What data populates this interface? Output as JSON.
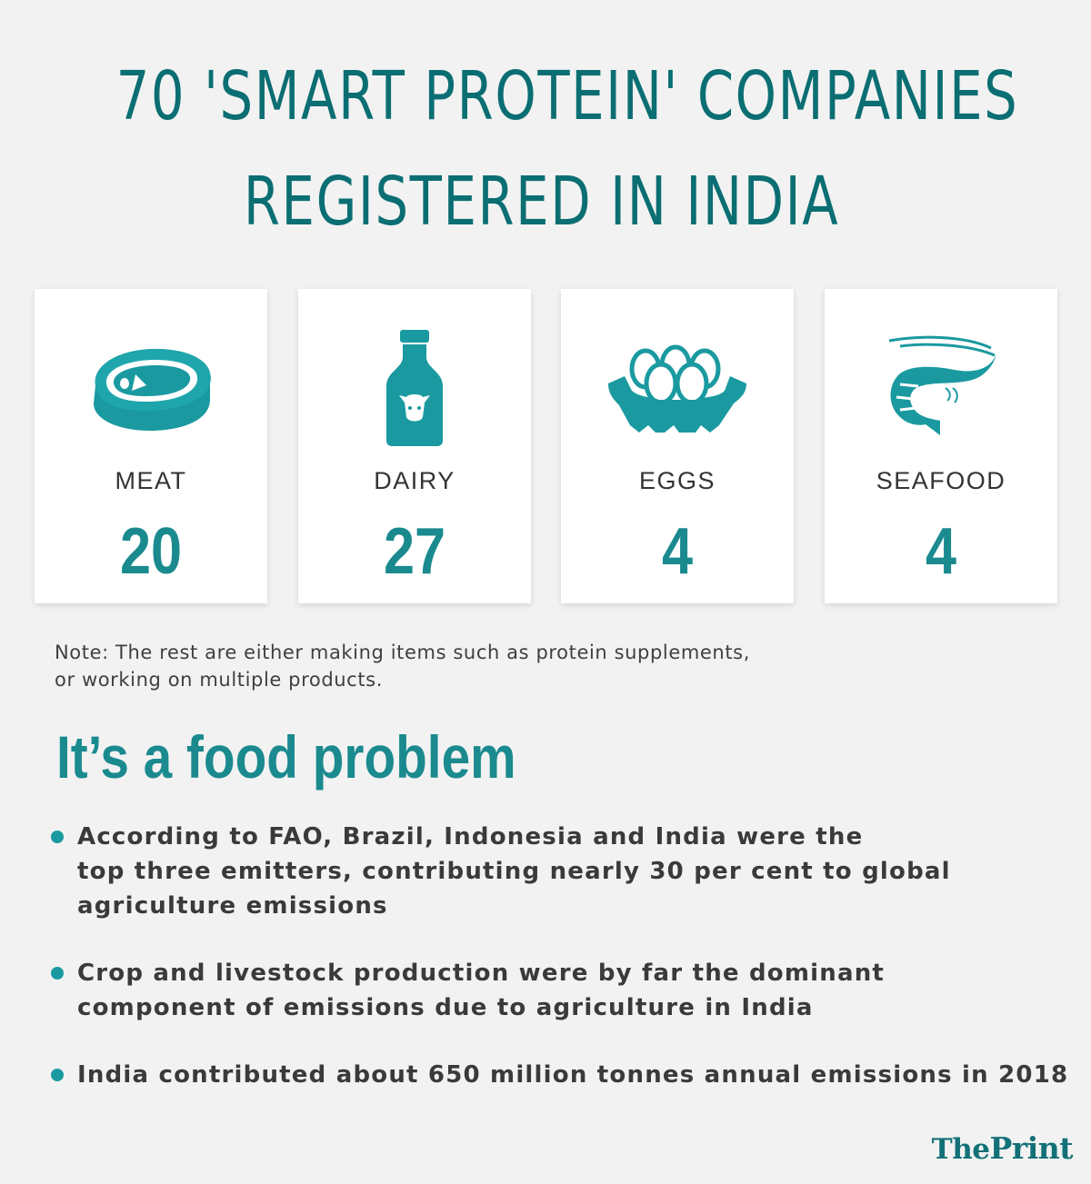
{
  "header": {
    "title_line1": "70 'SMART PROTEIN' COMPANIES",
    "title_line2": "REGISTERED IN INDIA"
  },
  "categories": [
    {
      "label": "MEAT",
      "value": "20",
      "icon": "steak-icon"
    },
    {
      "label": "DAIRY",
      "value": "27",
      "icon": "milk-bottle-icon"
    },
    {
      "label": "EGGS",
      "value": "4",
      "icon": "egg-carton-icon"
    },
    {
      "label": "SEAFOOD",
      "value": "4",
      "icon": "shrimp-icon"
    }
  ],
  "note": {
    "line1": "Note: The rest are either making items such as protein supplements,",
    "line2": "or working on multiple products."
  },
  "section": {
    "heading": "It’s a food problem",
    "bullets": [
      {
        "lines": [
          "According to FAO, Brazil, Indonesia and India were the",
          "top three emitters, contributing nearly 30 per cent to global",
          "agriculture emissions"
        ]
      },
      {
        "lines": [
          "Crop and livestock production were by far the dominant",
          "component of emissions due to agriculture in India"
        ]
      },
      {
        "lines": [
          "India contributed about 650 million tonnes annual emissions in 2018"
        ]
      }
    ]
  },
  "brand": {
    "part1": "The",
    "part2": "Print"
  },
  "colors": {
    "accent": "#1a8a8f",
    "title": "#0b6e73",
    "background": "#f2f2f2"
  }
}
